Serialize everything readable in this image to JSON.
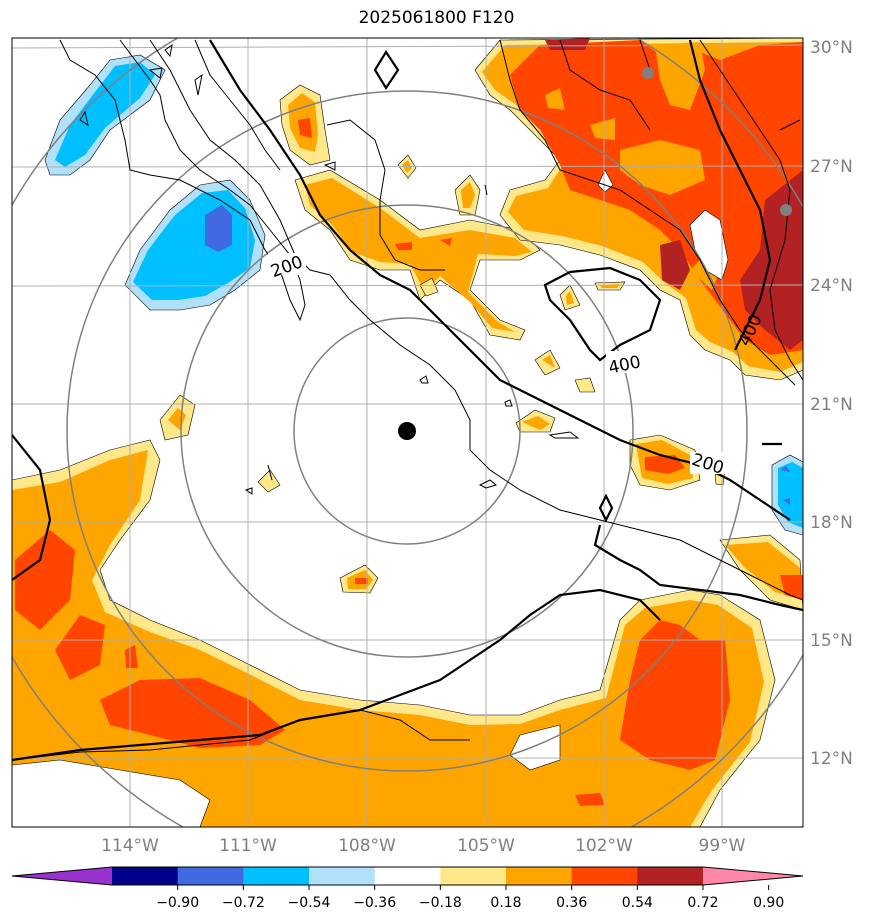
{
  "title": "2025061800 F120",
  "map": {
    "lon_ticks": [
      "114°W",
      "111°W",
      "108°W",
      "105°W",
      "102°W",
      "99°W"
    ],
    "lat_ticks": [
      "30°N",
      "27°N",
      "24°N",
      "21°N",
      "18°N",
      "15°N",
      "12°N"
    ],
    "contour_labels": [
      "200",
      "400",
      "200",
      "400"
    ]
  },
  "colorbar": {
    "ticks": [
      "−0.90",
      "−0.72",
      "−0.54",
      "−0.36",
      "−0.18",
      "0.18",
      "0.36",
      "0.54",
      "0.72",
      "0.90"
    ],
    "colors": [
      "#9932cc",
      "#00008b",
      "#4169e1",
      "#00bfff",
      "#b0e0fa",
      "#ffffff",
      "#ffe88a",
      "#ffa500",
      "#ff4500",
      "#b22222",
      "#ff88aa"
    ]
  }
}
